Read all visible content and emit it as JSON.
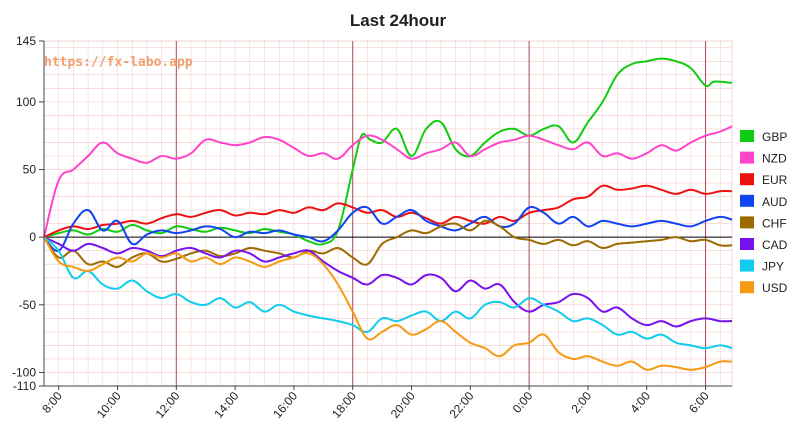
{
  "chart_data": {
    "type": "line",
    "title": "Last 24hour",
    "watermark": "https://fx-labo.app",
    "ylim": [
      -110,
      145
    ],
    "y_ticks": [
      145,
      100,
      50,
      0,
      -50,
      -100,
      -110
    ],
    "x_tick_labels": [
      "8:00",
      "10:00",
      "12:00",
      "14:00",
      "16:00",
      "18:00",
      "20:00",
      "22:00",
      "0:00",
      "2:00",
      "4:00",
      "6:00"
    ],
    "x_tick_hours": [
      8,
      10,
      12,
      14,
      16,
      18,
      20,
      22,
      24,
      26,
      28,
      30
    ],
    "x_range_hours": [
      7.5,
      30.9
    ],
    "vertical_marker_hours": [
      7.5,
      12,
      18,
      24,
      30
    ],
    "legend_placement": "right",
    "colors": {
      "grid": "#f2c9c9",
      "marker": "#b2474f",
      "zero_line": "#000000"
    },
    "series": [
      {
        "name": "GBP",
        "color": "#11cc11",
        "x": [
          7.5,
          8,
          8.5,
          9,
          9.5,
          10,
          10.5,
          11,
          11.5,
          12,
          12.5,
          13,
          13.5,
          14,
          14.5,
          15,
          15.5,
          16,
          16.5,
          17,
          17.5,
          18,
          18.3,
          18.6,
          19,
          19.5,
          20,
          20.5,
          21,
          21.5,
          22,
          22.5,
          23,
          23.5,
          24,
          24.5,
          25,
          25.5,
          26,
          26.5,
          27,
          27.5,
          28,
          28.5,
          29,
          29.5,
          30,
          30.3,
          30.9
        ],
        "values": [
          0,
          3,
          5,
          2,
          6,
          4,
          9,
          5,
          3,
          8,
          6,
          4,
          7,
          5,
          3,
          6,
          4,
          2,
          -3,
          -5,
          5,
          50,
          75,
          72,
          70,
          80,
          60,
          80,
          85,
          65,
          60,
          70,
          78,
          80,
          75,
          80,
          82,
          70,
          85,
          100,
          120,
          128,
          130,
          132,
          130,
          125,
          112,
          115,
          114
        ]
      },
      {
        "name": "NZD",
        "color": "#ff44cc",
        "x": [
          7.5,
          8,
          8.5,
          9,
          9.5,
          10,
          10.5,
          11,
          11.5,
          12,
          12.5,
          13,
          13.5,
          14,
          14.5,
          15,
          15.5,
          16,
          16.5,
          17,
          17.5,
          18,
          18.5,
          19,
          19.5,
          20,
          20.5,
          21,
          21.5,
          22,
          22.5,
          23,
          23.5,
          24,
          24.5,
          25,
          25.5,
          26,
          26.5,
          27,
          27.5,
          28,
          28.5,
          29,
          29.5,
          30,
          30.5,
          30.9
        ],
        "values": [
          0,
          42,
          50,
          60,
          70,
          62,
          58,
          55,
          60,
          58,
          62,
          72,
          70,
          68,
          70,
          74,
          72,
          66,
          60,
          62,
          58,
          68,
          75,
          72,
          65,
          58,
          62,
          65,
          70,
          60,
          65,
          70,
          72,
          75,
          72,
          68,
          65,
          70,
          60,
          62,
          58,
          62,
          68,
          64,
          70,
          75,
          78,
          82
        ]
      },
      {
        "name": "EUR",
        "color": "#ee1111",
        "x": [
          7.5,
          8,
          8.5,
          9,
          9.5,
          10,
          10.5,
          11,
          11.5,
          12,
          12.5,
          13,
          13.5,
          14,
          14.5,
          15,
          15.5,
          16,
          16.5,
          17,
          17.5,
          18,
          18.5,
          19,
          19.5,
          20,
          20.5,
          21,
          21.5,
          22,
          22.5,
          23,
          23.5,
          24,
          24.5,
          25,
          25.5,
          26,
          26.5,
          27,
          27.5,
          28,
          28.5,
          29,
          29.5,
          30,
          30.5,
          30.9
        ],
        "values": [
          0,
          5,
          8,
          6,
          9,
          10,
          12,
          10,
          14,
          17,
          15,
          18,
          20,
          16,
          18,
          17,
          20,
          18,
          22,
          20,
          25,
          22,
          18,
          20,
          15,
          18,
          14,
          10,
          15,
          12,
          10,
          15,
          12,
          18,
          20,
          22,
          28,
          30,
          38,
          35,
          36,
          38,
          35,
          32,
          35,
          32,
          34,
          34
        ]
      },
      {
        "name": "AUD",
        "color": "#1144ee",
        "x": [
          7.5,
          8,
          8.5,
          9,
          9.5,
          10,
          10.5,
          11,
          11.5,
          12,
          12.5,
          13,
          13.5,
          14,
          14.5,
          15,
          15.5,
          16,
          16.5,
          17,
          17.5,
          18,
          18.5,
          19,
          19.5,
          20,
          20.5,
          21,
          21.5,
          22,
          22.5,
          23,
          23.5,
          24,
          24.5,
          25,
          25.5,
          26,
          26.5,
          27,
          27.5,
          28,
          28.5,
          29,
          29.5,
          30,
          30.5,
          30.9
        ],
        "values": [
          0,
          -10,
          10,
          20,
          5,
          12,
          -5,
          2,
          5,
          3,
          5,
          8,
          6,
          0,
          4,
          3,
          5,
          2,
          0,
          -3,
          5,
          18,
          22,
          10,
          15,
          20,
          12,
          8,
          5,
          10,
          15,
          8,
          10,
          22,
          18,
          10,
          15,
          8,
          12,
          10,
          8,
          10,
          12,
          10,
          8,
          12,
          15,
          13
        ]
      },
      {
        "name": "CHF",
        "color": "#9c6a00",
        "x": [
          7.5,
          8,
          8.5,
          9,
          9.5,
          10,
          10.5,
          11,
          11.5,
          12,
          12.5,
          13,
          13.5,
          14,
          14.5,
          15,
          15.5,
          16,
          16.5,
          17,
          17.5,
          18,
          18.5,
          19,
          19.5,
          20,
          20.5,
          21,
          21.5,
          22,
          22.5,
          23,
          23.5,
          24,
          24.5,
          25,
          25.5,
          26,
          26.5,
          27,
          27.5,
          28,
          28.5,
          29,
          29.5,
          30,
          30.5,
          30.9
        ],
        "values": [
          0,
          -15,
          -10,
          -20,
          -18,
          -22,
          -15,
          -12,
          -18,
          -16,
          -12,
          -10,
          -14,
          -12,
          -8,
          -10,
          -12,
          -15,
          -10,
          -12,
          -8,
          -15,
          -20,
          -5,
          0,
          5,
          3,
          8,
          10,
          5,
          12,
          8,
          0,
          -2,
          -5,
          -2,
          -6,
          -3,
          -8,
          -5,
          -4,
          -3,
          -2,
          0,
          -3,
          -2,
          -6,
          -6
        ]
      },
      {
        "name": "CAD",
        "color": "#7711ee",
        "x": [
          7.5,
          8,
          8.5,
          9,
          9.5,
          10,
          10.5,
          11,
          11.5,
          12,
          12.5,
          13,
          13.5,
          14,
          14.5,
          15,
          15.5,
          16,
          16.5,
          17,
          17.5,
          18,
          18.5,
          19,
          19.5,
          20,
          20.5,
          21,
          21.5,
          22,
          22.5,
          23,
          23.5,
          24,
          24.5,
          25,
          25.5,
          26,
          26.5,
          27,
          27.5,
          28,
          28.5,
          29,
          29.5,
          30,
          30.5,
          30.9
        ],
        "values": [
          0,
          -5,
          -10,
          -5,
          -8,
          -12,
          -8,
          -10,
          -14,
          -10,
          -8,
          -12,
          -15,
          -10,
          -12,
          -18,
          -15,
          -12,
          -10,
          -18,
          -25,
          -30,
          -35,
          -28,
          -30,
          -35,
          -28,
          -30,
          -40,
          -32,
          -38,
          -35,
          -48,
          -55,
          -50,
          -48,
          -42,
          -45,
          -55,
          -52,
          -60,
          -65,
          -62,
          -66,
          -62,
          -60,
          -62,
          -62
        ]
      },
      {
        "name": "JPY",
        "color": "#11ccee",
        "x": [
          7.5,
          8,
          8.5,
          9,
          9.5,
          10,
          10.5,
          11,
          11.5,
          12,
          12.5,
          13,
          13.5,
          14,
          14.5,
          15,
          15.5,
          16,
          16.5,
          17,
          17.5,
          18,
          18.5,
          19,
          19.5,
          20,
          20.5,
          21,
          21.5,
          22,
          22.5,
          23,
          23.5,
          24,
          24.5,
          25,
          25.5,
          26,
          26.5,
          27,
          27.5,
          28,
          28.5,
          29,
          29.5,
          30,
          30.5,
          30.9
        ],
        "values": [
          0,
          -10,
          -30,
          -25,
          -35,
          -38,
          -32,
          -40,
          -45,
          -42,
          -48,
          -50,
          -45,
          -52,
          -48,
          -55,
          -50,
          -55,
          -58,
          -60,
          -62,
          -65,
          -70,
          -60,
          -62,
          -58,
          -55,
          -62,
          -55,
          -60,
          -50,
          -48,
          -52,
          -45,
          -50,
          -55,
          -62,
          -60,
          -65,
          -72,
          -70,
          -75,
          -72,
          -78,
          -80,
          -82,
          -80,
          -82
        ]
      },
      {
        "name": "USD",
        "color": "#f59a11",
        "x": [
          7.5,
          8,
          8.5,
          9,
          9.5,
          10,
          10.5,
          11,
          11.5,
          12,
          12.5,
          13,
          13.5,
          14,
          14.5,
          15,
          15.5,
          16,
          16.5,
          17,
          17.5,
          18,
          18.5,
          19,
          19.5,
          20,
          20.5,
          21,
          21.5,
          22,
          22.5,
          23,
          23.5,
          24,
          24.5,
          25,
          25.5,
          26,
          26.5,
          27,
          27.5,
          28,
          28.5,
          29,
          29.5,
          30,
          30.5,
          30.9
        ],
        "values": [
          0,
          -18,
          -22,
          -25,
          -20,
          -15,
          -18,
          -12,
          -15,
          -12,
          -18,
          -15,
          -20,
          -15,
          -18,
          -22,
          -18,
          -15,
          -12,
          -20,
          -35,
          -55,
          -75,
          -70,
          -65,
          -72,
          -68,
          -62,
          -70,
          -78,
          -82,
          -88,
          -80,
          -78,
          -72,
          -85,
          -90,
          -88,
          -92,
          -95,
          -92,
          -98,
          -95,
          -96,
          -98,
          -96,
          -92,
          -92
        ]
      }
    ]
  }
}
